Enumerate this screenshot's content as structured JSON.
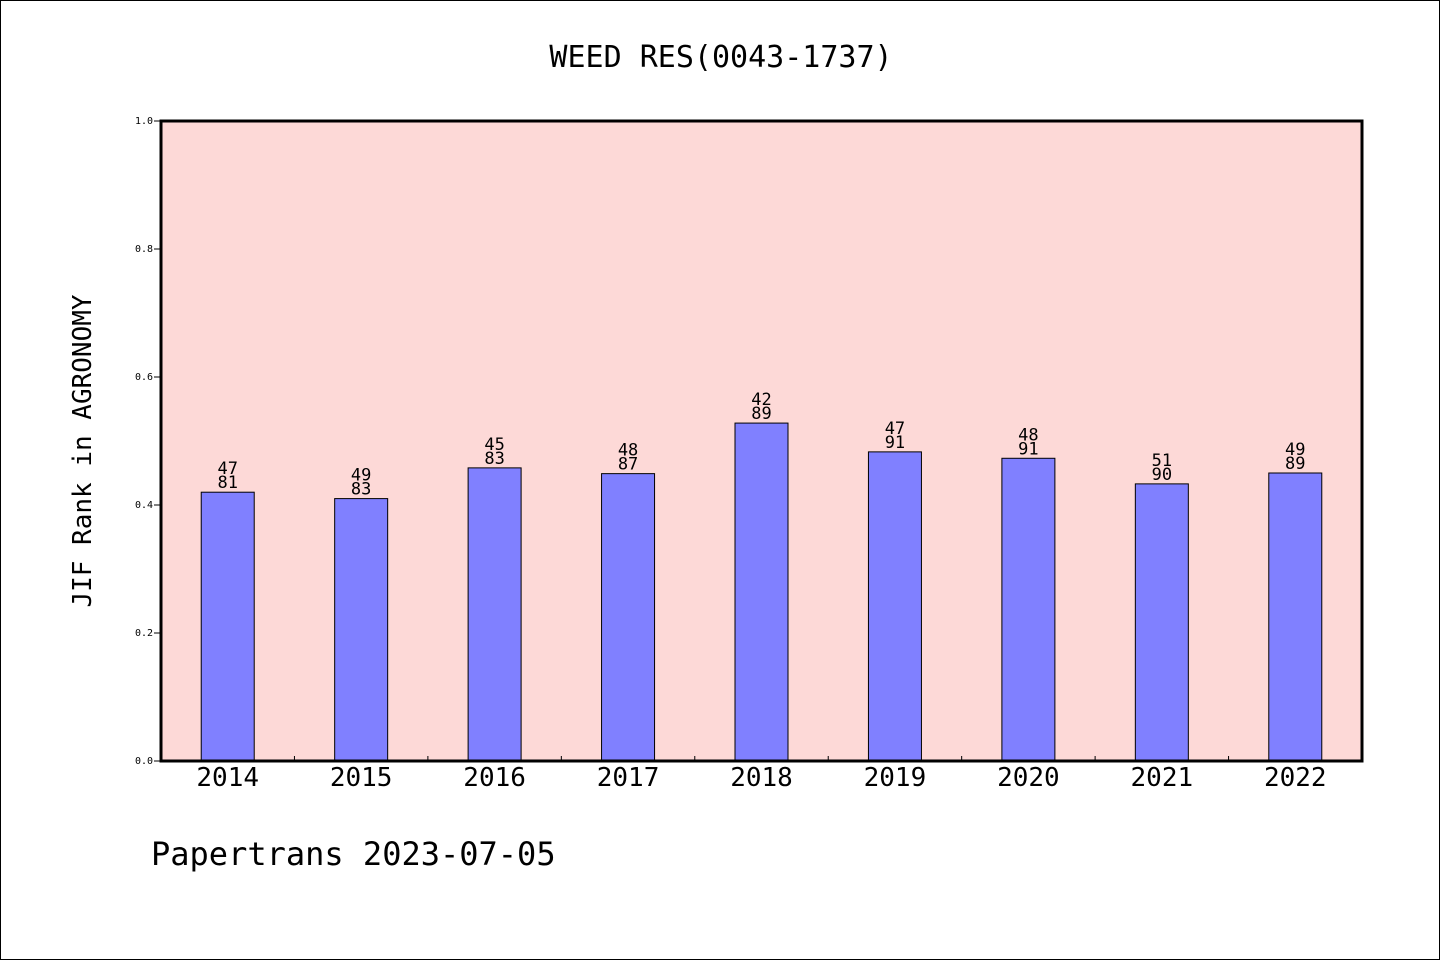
{
  "chart_data": {
    "type": "bar",
    "title": "WEED RES(0043-1737)",
    "ylabel": "JIF Rank in AGRONOMY",
    "xlabel": "",
    "ylim": [
      0,
      1.0
    ],
    "yticks": [
      "0.0",
      "0.2",
      "0.4",
      "0.6",
      "0.8",
      "1.0"
    ],
    "categories": [
      "2014",
      "2015",
      "2016",
      "2017",
      "2018",
      "2019",
      "2020",
      "2021",
      "2022"
    ],
    "values": [
      0.42,
      0.41,
      0.458,
      0.449,
      0.528,
      0.483,
      0.473,
      0.433,
      0.45
    ],
    "labels_top": [
      "47",
      "49",
      "45",
      "48",
      "42",
      "47",
      "48",
      "51",
      "49"
    ],
    "labels_bottom": [
      "81",
      "83",
      "83",
      "87",
      "89",
      "91",
      "91",
      "90",
      "89"
    ],
    "grid": false,
    "colors": {
      "plot_background": "#fdd9d7",
      "bar_fill": "#8080ff",
      "bar_stroke": "#000000"
    }
  },
  "footer": "Papertrans 2023-07-05"
}
